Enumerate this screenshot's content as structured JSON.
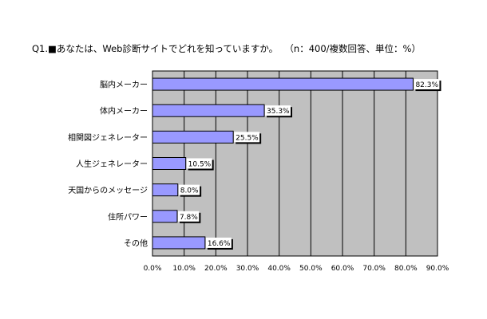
{
  "title": {
    "question": "Q1.■あなたは、Web診断サイトでどれを知っていますか。",
    "note": "（n：400/複数回答、単位：%）"
  },
  "colors": {
    "plot_bg": "#c0c0c0",
    "bar_fill": "#9999ff",
    "bar_stroke": "#000000",
    "shadow": "#000000",
    "grid": "#000000",
    "label_bg": "#ffffff"
  },
  "chart_data": {
    "type": "bar",
    "orientation": "horizontal",
    "title": "Q1.■あなたは、Web診断サイトでどれを知っていますか。　（n：400/複数回答、単位：%）",
    "categories": [
      "脳内メーカー",
      "体内メーカー",
      "相関図ジェネレーター",
      "人生ジェネレーター",
      "天国からのメッセージ",
      "住所パワー",
      "その他"
    ],
    "values": [
      82.3,
      35.3,
      25.5,
      10.5,
      8.0,
      7.8,
      16.6
    ],
    "data_labels": [
      "82.3%",
      "35.3%",
      "25.5%",
      "10.5%",
      "8.0%",
      "7.8%",
      "16.6%"
    ],
    "xlim": [
      0,
      90
    ],
    "xticks": [
      0,
      10,
      20,
      30,
      40,
      50,
      60,
      70,
      80,
      90
    ],
    "xtick_labels": [
      "0.0%",
      "10.0%",
      "20.0%",
      "30.0%",
      "40.0%",
      "50.0%",
      "60.0%",
      "70.0%",
      "80.0%",
      "90.0%"
    ],
    "xlabel": "",
    "ylabel": "",
    "grid": true,
    "legend": "none"
  }
}
